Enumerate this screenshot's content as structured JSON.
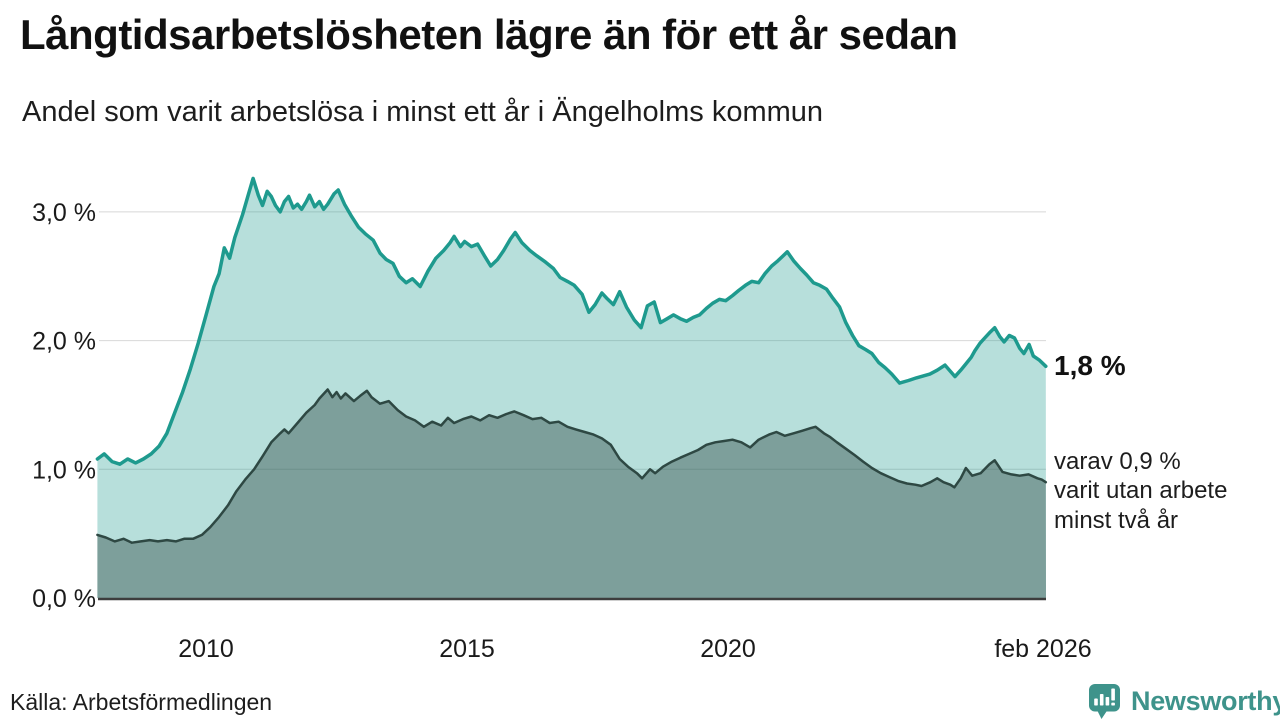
{
  "header": {
    "title": "Långtidsarbetslösheten lägre än för ett år sedan",
    "subtitle": "Andel som varit arbetslösa i minst ett år i Ängelholms kommun"
  },
  "chart_data": {
    "type": "area",
    "unit": "%",
    "grid": "horizontal",
    "legend_position": "none",
    "x_domain": [
      2007.95,
      2026.083
    ],
    "ylim": [
      0,
      3.3
    ],
    "y_ticks": [
      {
        "value": 3,
        "label": "3,0 %"
      },
      {
        "value": 2,
        "label": "2,0 %"
      },
      {
        "value": 1,
        "label": "1,0 %"
      },
      {
        "value": 0,
        "label": "0,0 %"
      }
    ],
    "x_ticks": [
      {
        "value": 2010,
        "label": "2010"
      },
      {
        "value": 2015,
        "label": "2015"
      },
      {
        "value": 2020,
        "label": "2020"
      },
      {
        "value": 2026.02,
        "label": "feb 2026"
      }
    ],
    "series": [
      {
        "name": "arbetslösa minst ett år",
        "line_color": "#1e9a8e",
        "fill_color": "#1e9a8e",
        "fill_opacity": 0.32,
        "line_width": 3.5,
        "last_value": "1,8 %",
        "points": [
          [
            2007.92,
            1.08
          ],
          [
            2008.05,
            1.12
          ],
          [
            2008.2,
            1.06
          ],
          [
            2008.35,
            1.04
          ],
          [
            2008.5,
            1.08
          ],
          [
            2008.65,
            1.05
          ],
          [
            2008.8,
            1.08
          ],
          [
            2008.95,
            1.12
          ],
          [
            2009.1,
            1.18
          ],
          [
            2009.25,
            1.28
          ],
          [
            2009.4,
            1.44
          ],
          [
            2009.55,
            1.6
          ],
          [
            2009.7,
            1.78
          ],
          [
            2009.85,
            1.98
          ],
          [
            2010.0,
            2.2
          ],
          [
            2010.15,
            2.42
          ],
          [
            2010.25,
            2.52
          ],
          [
            2010.35,
            2.72
          ],
          [
            2010.45,
            2.64
          ],
          [
            2010.55,
            2.8
          ],
          [
            2010.7,
            2.98
          ],
          [
            2010.8,
            3.12
          ],
          [
            2010.9,
            3.26
          ],
          [
            2011.0,
            3.13
          ],
          [
            2011.08,
            3.05
          ],
          [
            2011.17,
            3.16
          ],
          [
            2011.25,
            3.12
          ],
          [
            2011.33,
            3.05
          ],
          [
            2011.42,
            3.0
          ],
          [
            2011.5,
            3.08
          ],
          [
            2011.58,
            3.12
          ],
          [
            2011.67,
            3.03
          ],
          [
            2011.75,
            3.06
          ],
          [
            2011.83,
            3.02
          ],
          [
            2011.92,
            3.08
          ],
          [
            2011.98,
            3.13
          ],
          [
            2012.08,
            3.04
          ],
          [
            2012.17,
            3.08
          ],
          [
            2012.25,
            3.02
          ],
          [
            2012.33,
            3.06
          ],
          [
            2012.45,
            3.14
          ],
          [
            2012.53,
            3.17
          ],
          [
            2012.65,
            3.06
          ],
          [
            2012.78,
            2.97
          ],
          [
            2012.92,
            2.88
          ],
          [
            2013.05,
            2.83
          ],
          [
            2013.2,
            2.78
          ],
          [
            2013.33,
            2.68
          ],
          [
            2013.45,
            2.63
          ],
          [
            2013.58,
            2.6
          ],
          [
            2013.7,
            2.5
          ],
          [
            2013.83,
            2.45
          ],
          [
            2013.95,
            2.48
          ],
          [
            2014.1,
            2.42
          ],
          [
            2014.25,
            2.54
          ],
          [
            2014.4,
            2.64
          ],
          [
            2014.55,
            2.7
          ],
          [
            2014.67,
            2.76
          ],
          [
            2014.75,
            2.81
          ],
          [
            2014.87,
            2.73
          ],
          [
            2014.95,
            2.77
          ],
          [
            2015.08,
            2.73
          ],
          [
            2015.2,
            2.75
          ],
          [
            2015.33,
            2.66
          ],
          [
            2015.45,
            2.58
          ],
          [
            2015.58,
            2.63
          ],
          [
            2015.7,
            2.7
          ],
          [
            2015.83,
            2.79
          ],
          [
            2015.92,
            2.84
          ],
          [
            2016.05,
            2.76
          ],
          [
            2016.2,
            2.7
          ],
          [
            2016.33,
            2.66
          ],
          [
            2016.5,
            2.61
          ],
          [
            2016.65,
            2.56
          ],
          [
            2016.78,
            2.49
          ],
          [
            2016.92,
            2.46
          ],
          [
            2017.05,
            2.43
          ],
          [
            2017.2,
            2.36
          ],
          [
            2017.33,
            2.22
          ],
          [
            2017.45,
            2.28
          ],
          [
            2017.58,
            2.37
          ],
          [
            2017.67,
            2.33
          ],
          [
            2017.8,
            2.28
          ],
          [
            2017.92,
            2.38
          ],
          [
            2018.05,
            2.26
          ],
          [
            2018.2,
            2.16
          ],
          [
            2018.33,
            2.1
          ],
          [
            2018.45,
            2.27
          ],
          [
            2018.58,
            2.3
          ],
          [
            2018.7,
            2.14
          ],
          [
            2018.83,
            2.17
          ],
          [
            2018.95,
            2.2
          ],
          [
            2019.08,
            2.17
          ],
          [
            2019.2,
            2.15
          ],
          [
            2019.33,
            2.18
          ],
          [
            2019.45,
            2.2
          ],
          [
            2019.58,
            2.25
          ],
          [
            2019.7,
            2.29
          ],
          [
            2019.83,
            2.32
          ],
          [
            2019.95,
            2.31
          ],
          [
            2020.08,
            2.35
          ],
          [
            2020.2,
            2.39
          ],
          [
            2020.33,
            2.43
          ],
          [
            2020.45,
            2.46
          ],
          [
            2020.58,
            2.45
          ],
          [
            2020.7,
            2.52
          ],
          [
            2020.83,
            2.58
          ],
          [
            2020.95,
            2.62
          ],
          [
            2021.05,
            2.66
          ],
          [
            2021.13,
            2.69
          ],
          [
            2021.25,
            2.62
          ],
          [
            2021.38,
            2.56
          ],
          [
            2021.5,
            2.51
          ],
          [
            2021.63,
            2.45
          ],
          [
            2021.75,
            2.43
          ],
          [
            2021.88,
            2.4
          ],
          [
            2022.0,
            2.33
          ],
          [
            2022.13,
            2.26
          ],
          [
            2022.25,
            2.14
          ],
          [
            2022.38,
            2.04
          ],
          [
            2022.5,
            1.96
          ],
          [
            2022.63,
            1.93
          ],
          [
            2022.75,
            1.9
          ],
          [
            2022.88,
            1.83
          ],
          [
            2023.0,
            1.79
          ],
          [
            2023.13,
            1.74
          ],
          [
            2023.28,
            1.67
          ],
          [
            2023.45,
            1.69
          ],
          [
            2023.6,
            1.71
          ],
          [
            2023.86,
            1.74
          ],
          [
            2024.0,
            1.77
          ],
          [
            2024.15,
            1.81
          ],
          [
            2024.34,
            1.72
          ],
          [
            2024.45,
            1.77
          ],
          [
            2024.53,
            1.81
          ],
          [
            2024.65,
            1.87
          ],
          [
            2024.72,
            1.92
          ],
          [
            2024.82,
            1.98
          ],
          [
            2024.91,
            2.02
          ],
          [
            2025.0,
            2.06
          ],
          [
            2025.1,
            2.1
          ],
          [
            2025.2,
            2.03
          ],
          [
            2025.28,
            1.99
          ],
          [
            2025.38,
            2.04
          ],
          [
            2025.48,
            2.02
          ],
          [
            2025.58,
            1.94
          ],
          [
            2025.66,
            1.9
          ],
          [
            2025.76,
            1.97
          ],
          [
            2025.84,
            1.88
          ],
          [
            2025.95,
            1.85
          ],
          [
            2026.08,
            1.8
          ]
        ]
      },
      {
        "name": "varav utan arbete minst två år",
        "line_color": "#2e4843",
        "fill_color": "#2e4843",
        "fill_opacity": 0.42,
        "line_width": 2.5,
        "last_value": "0,9 %",
        "points": [
          [
            2007.92,
            0.49
          ],
          [
            2008.08,
            0.47
          ],
          [
            2008.25,
            0.44
          ],
          [
            2008.42,
            0.46
          ],
          [
            2008.58,
            0.43
          ],
          [
            2008.75,
            0.44
          ],
          [
            2008.92,
            0.45
          ],
          [
            2009.08,
            0.44
          ],
          [
            2009.25,
            0.45
          ],
          [
            2009.42,
            0.44
          ],
          [
            2009.58,
            0.46
          ],
          [
            2009.75,
            0.46
          ],
          [
            2009.92,
            0.49
          ],
          [
            2010.08,
            0.55
          ],
          [
            2010.25,
            0.63
          ],
          [
            2010.42,
            0.72
          ],
          [
            2010.58,
            0.83
          ],
          [
            2010.75,
            0.92
          ],
          [
            2010.92,
            1.0
          ],
          [
            2011.08,
            1.1
          ],
          [
            2011.25,
            1.21
          ],
          [
            2011.42,
            1.28
          ],
          [
            2011.5,
            1.31
          ],
          [
            2011.58,
            1.28
          ],
          [
            2011.75,
            1.36
          ],
          [
            2011.92,
            1.44
          ],
          [
            2012.08,
            1.5
          ],
          [
            2012.17,
            1.55
          ],
          [
            2012.33,
            1.62
          ],
          [
            2012.42,
            1.56
          ],
          [
            2012.5,
            1.6
          ],
          [
            2012.58,
            1.55
          ],
          [
            2012.67,
            1.59
          ],
          [
            2012.83,
            1.53
          ],
          [
            2012.95,
            1.57
          ],
          [
            2013.08,
            1.61
          ],
          [
            2013.17,
            1.56
          ],
          [
            2013.33,
            1.51
          ],
          [
            2013.5,
            1.53
          ],
          [
            2013.67,
            1.46
          ],
          [
            2013.83,
            1.41
          ],
          [
            2014.0,
            1.38
          ],
          [
            2014.17,
            1.33
          ],
          [
            2014.33,
            1.37
          ],
          [
            2014.5,
            1.34
          ],
          [
            2014.63,
            1.4
          ],
          [
            2014.75,
            1.36
          ],
          [
            2014.92,
            1.39
          ],
          [
            2015.08,
            1.41
          ],
          [
            2015.25,
            1.38
          ],
          [
            2015.42,
            1.42
          ],
          [
            2015.58,
            1.4
          ],
          [
            2015.75,
            1.43
          ],
          [
            2015.9,
            1.45
          ],
          [
            2016.08,
            1.42
          ],
          [
            2016.25,
            1.39
          ],
          [
            2016.42,
            1.4
          ],
          [
            2016.58,
            1.36
          ],
          [
            2016.75,
            1.37
          ],
          [
            2016.92,
            1.33
          ],
          [
            2017.08,
            1.31
          ],
          [
            2017.25,
            1.29
          ],
          [
            2017.42,
            1.27
          ],
          [
            2017.58,
            1.24
          ],
          [
            2017.75,
            1.19
          ],
          [
            2017.92,
            1.08
          ],
          [
            2018.08,
            1.02
          ],
          [
            2018.25,
            0.97
          ],
          [
            2018.35,
            0.93
          ],
          [
            2018.5,
            1.0
          ],
          [
            2018.6,
            0.97
          ],
          [
            2018.75,
            1.02
          ],
          [
            2018.92,
            1.06
          ],
          [
            2019.08,
            1.09
          ],
          [
            2019.25,
            1.12
          ],
          [
            2019.42,
            1.15
          ],
          [
            2019.58,
            1.19
          ],
          [
            2019.75,
            1.21
          ],
          [
            2019.92,
            1.22
          ],
          [
            2020.08,
            1.23
          ],
          [
            2020.25,
            1.21
          ],
          [
            2020.42,
            1.17
          ],
          [
            2020.58,
            1.23
          ],
          [
            2020.78,
            1.27
          ],
          [
            2020.92,
            1.29
          ],
          [
            2021.08,
            1.26
          ],
          [
            2021.25,
            1.28
          ],
          [
            2021.42,
            1.3
          ],
          [
            2021.58,
            1.32
          ],
          [
            2021.67,
            1.33
          ],
          [
            2021.83,
            1.28
          ],
          [
            2021.95,
            1.25
          ],
          [
            2022.08,
            1.21
          ],
          [
            2022.25,
            1.16
          ],
          [
            2022.42,
            1.11
          ],
          [
            2022.58,
            1.06
          ],
          [
            2022.75,
            1.01
          ],
          [
            2022.92,
            0.97
          ],
          [
            2023.08,
            0.94
          ],
          [
            2023.25,
            0.91
          ],
          [
            2023.42,
            0.89
          ],
          [
            2023.58,
            0.88
          ],
          [
            2023.7,
            0.87
          ],
          [
            2023.87,
            0.9
          ],
          [
            2024.0,
            0.93
          ],
          [
            2024.12,
            0.9
          ],
          [
            2024.25,
            0.88
          ],
          [
            2024.33,
            0.86
          ],
          [
            2024.45,
            0.93
          ],
          [
            2024.55,
            1.01
          ],
          [
            2024.67,
            0.95
          ],
          [
            2024.83,
            0.97
          ],
          [
            2025.0,
            1.04
          ],
          [
            2025.1,
            1.07
          ],
          [
            2025.25,
            0.98
          ],
          [
            2025.42,
            0.96
          ],
          [
            2025.58,
            0.95
          ],
          [
            2025.75,
            0.96
          ],
          [
            2025.92,
            0.93
          ],
          [
            2026.0,
            0.92
          ],
          [
            2026.08,
            0.9
          ]
        ]
      }
    ],
    "annotations": {
      "total_label": "1,8 %",
      "sub_label": "varav 0,9 %\nvarit utan arbete\nminst två år"
    },
    "colors": {
      "gridline": "#d8d8d8",
      "axis_line": "#3d3d3d",
      "tick_text": "#1a1a1a"
    }
  },
  "footer": {
    "source": "Källa: Arbetsförmedlingen",
    "brand": "Newsworthy",
    "brand_color": "#3e938b"
  }
}
